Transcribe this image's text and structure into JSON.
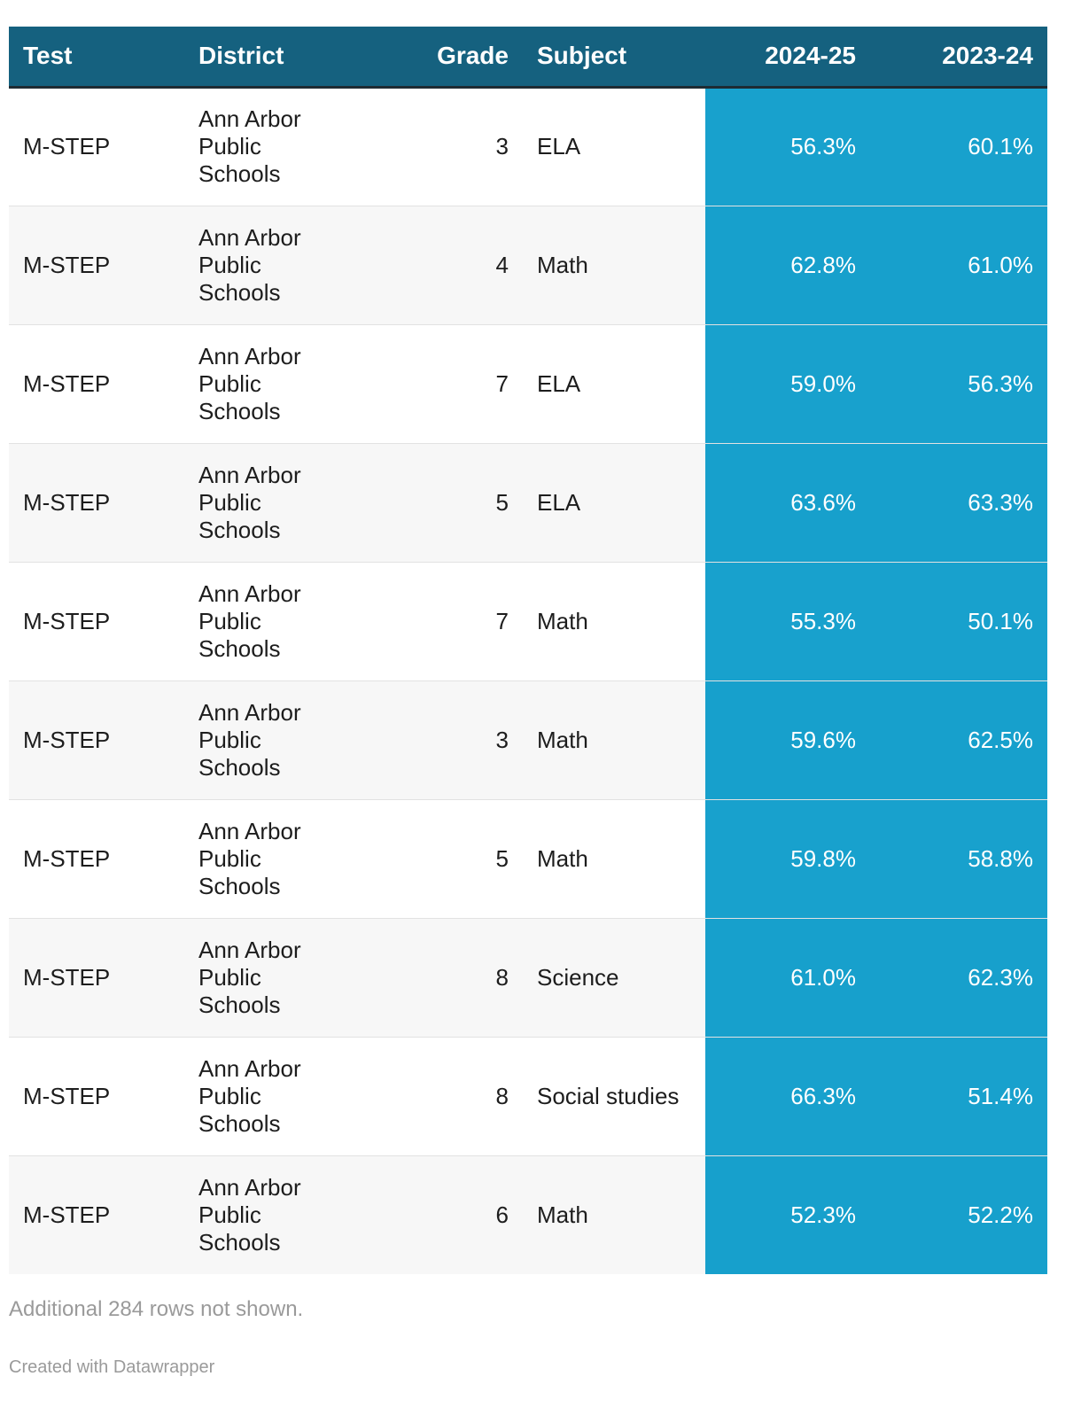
{
  "chart_data": {
    "type": "table",
    "columns": [
      "Test",
      "District",
      "Grade",
      "Subject",
      "2024-25",
      "2023-24"
    ],
    "rows": [
      {
        "test": "M-STEP",
        "district": "Ann Arbor Public Schools",
        "grade": "3",
        "subject": "ELA",
        "y2024_25": "56.3%",
        "y2023_24": "60.1%"
      },
      {
        "test": "M-STEP",
        "district": "Ann Arbor Public Schools",
        "grade": "4",
        "subject": "Math",
        "y2024_25": "62.8%",
        "y2023_24": "61.0%"
      },
      {
        "test": "M-STEP",
        "district": "Ann Arbor Public Schools",
        "grade": "7",
        "subject": "ELA",
        "y2024_25": "59.0%",
        "y2023_24": "56.3%"
      },
      {
        "test": "M-STEP",
        "district": "Ann Arbor Public Schools",
        "grade": "5",
        "subject": "ELA",
        "y2024_25": "63.6%",
        "y2023_24": "63.3%"
      },
      {
        "test": "M-STEP",
        "district": "Ann Arbor Public Schools",
        "grade": "7",
        "subject": "Math",
        "y2024_25": "55.3%",
        "y2023_24": "50.1%"
      },
      {
        "test": "M-STEP",
        "district": "Ann Arbor Public Schools",
        "grade": "3",
        "subject": "Math",
        "y2024_25": "59.6%",
        "y2023_24": "62.5%"
      },
      {
        "test": "M-STEP",
        "district": "Ann Arbor Public Schools",
        "grade": "5",
        "subject": "Math",
        "y2024_25": "59.8%",
        "y2023_24": "58.8%"
      },
      {
        "test": "M-STEP",
        "district": "Ann Arbor Public Schools",
        "grade": "8",
        "subject": "Science",
        "y2024_25": "61.0%",
        "y2023_24": "62.3%"
      },
      {
        "test": "M-STEP",
        "district": "Ann Arbor Public Schools",
        "grade": "8",
        "subject": "Social studies",
        "y2024_25": "66.3%",
        "y2023_24": "51.4%"
      },
      {
        "test": "M-STEP",
        "district": "Ann Arbor Public Schools",
        "grade": "6",
        "subject": "Math",
        "y2024_25": "52.3%",
        "y2023_24": "52.2%"
      }
    ],
    "header_color": "#15617f",
    "highlight_color": "#18a1cd"
  },
  "footer": {
    "note": "Additional 284 rows not shown.",
    "credit": "Created with Datawrapper"
  }
}
